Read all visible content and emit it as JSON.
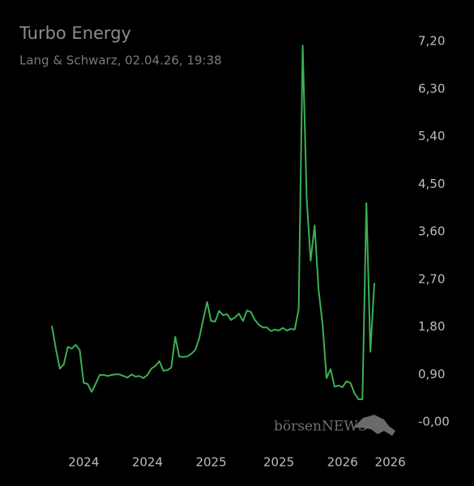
{
  "chart_data": {
    "type": "line",
    "title": "Turbo Energy",
    "subtitle": "Lang & Schwarz, 02.04.26, 19:38",
    "watermark": "börsenNEWS",
    "categories": [
      null,
      null,
      null,
      null,
      null,
      null,
      null,
      null,
      "2024",
      null,
      null,
      null,
      null,
      null,
      null,
      null,
      null,
      null,
      null,
      null,
      null,
      null,
      null,
      null,
      "2024",
      null,
      null,
      null,
      null,
      null,
      null,
      null,
      null,
      null,
      null,
      null,
      null,
      null,
      null,
      null,
      "2025",
      null,
      null,
      null,
      null,
      null,
      null,
      null,
      null,
      null,
      null,
      null,
      null,
      null,
      null,
      null,
      null,
      "2025",
      null,
      null,
      null,
      null,
      null,
      null,
      null,
      null,
      null,
      null,
      null,
      null,
      null,
      null,
      null,
      "2026",
      null,
      null,
      null,
      null,
      null,
      null,
      null,
      null,
      null,
      null,
      null,
      "2026"
    ],
    "series": [
      {
        "name": "Turbo Energy",
        "color": "#3cb054",
        "values": [
          1.82,
          1.39,
          1.01,
          1.09,
          1.42,
          1.39,
          1.46,
          1.36,
          0.74,
          0.72,
          0.57,
          0.72,
          0.89,
          0.89,
          0.87,
          0.89,
          0.9,
          0.9,
          0.87,
          0.84,
          0.9,
          0.86,
          0.87,
          0.83,
          0.89,
          1.01,
          1.06,
          1.15,
          0.97,
          0.98,
          1.03,
          1.61,
          1.24,
          1.23,
          1.24,
          1.29,
          1.36,
          1.58,
          1.93,
          2.27,
          1.91,
          1.9,
          2.1,
          2.02,
          2.04,
          1.93,
          1.98,
          2.05,
          1.91,
          2.11,
          2.08,
          1.93,
          1.84,
          1.79,
          1.79,
          1.72,
          1.75,
          1.73,
          1.78,
          1.73,
          1.76,
          1.75,
          2.13,
          7.12,
          4.23,
          3.05,
          3.72,
          2.5,
          1.85,
          0.83,
          1.0,
          0.67,
          0.69,
          0.66,
          0.77,
          0.74,
          0.55,
          0.43,
          0.43,
          4.14,
          1.33,
          2.63,
          null,
          null,
          null,
          null
        ]
      }
    ],
    "ylim": [
      0,
      7.2
    ],
    "yticks": [
      {
        "value": 0,
        "label": "-0,00"
      },
      {
        "value": 0.9,
        "label": "0,90"
      },
      {
        "value": 1.8,
        "label": "1,80"
      },
      {
        "value": 2.7,
        "label": "2,70"
      },
      {
        "value": 3.6,
        "label": "3,60"
      },
      {
        "value": 4.5,
        "label": "4,50"
      },
      {
        "value": 5.4,
        "label": "5,40"
      },
      {
        "value": 6.3,
        "label": "6,30"
      },
      {
        "value": 7.2,
        "label": "7,20"
      }
    ],
    "grid": false
  }
}
